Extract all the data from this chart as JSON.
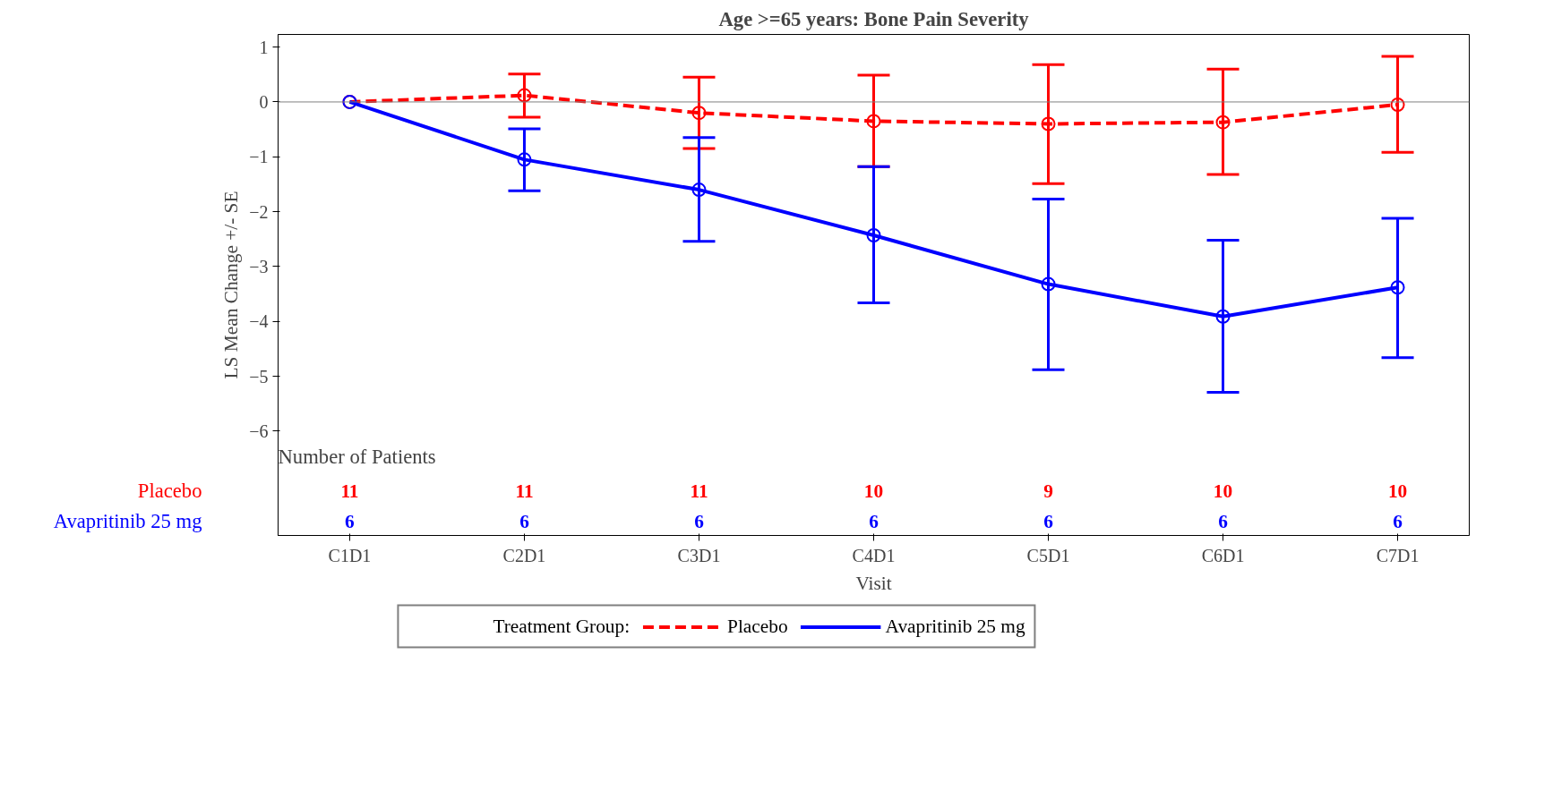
{
  "chart_data": {
    "type": "line",
    "title": "Age >=65 years: Bone Pain Severity",
    "xlabel": "Visit",
    "ylabel": "LS Mean Change +/- SE",
    "legend_title": "Treatment Group:",
    "categories": [
      "C1D1",
      "C2D1",
      "C3D1",
      "C4D1",
      "C5D1",
      "C6D1",
      "C7D1"
    ],
    "ylim": [
      -7.9,
      1.23
    ],
    "yticks": [
      1,
      0,
      -1,
      -2,
      -3,
      -4,
      -5,
      -6
    ],
    "grid": false,
    "legend": "bottom",
    "marker": "circle",
    "series": [
      {
        "name": "Placebo",
        "color": "#ff0000",
        "line_style": "dashed",
        "values": [
          0,
          0.12,
          -0.2,
          -0.35,
          -0.4,
          -0.37,
          -0.05
        ],
        "errors": [
          null,
          [
            -0.28,
            0.51
          ],
          [
            -0.85,
            0.45
          ],
          [
            -1.18,
            0.49
          ],
          [
            -1.49,
            0.68
          ],
          [
            -1.32,
            0.6
          ],
          [
            -0.92,
            0.83
          ]
        ]
      },
      {
        "name": "Avapritinib 25 mg",
        "color": "#0000ff",
        "line_style": "solid",
        "values": [
          0,
          -1.05,
          -1.6,
          -2.43,
          -3.32,
          -3.91,
          -3.38
        ],
        "errors": [
          null,
          [
            -1.62,
            -0.49
          ],
          [
            -2.54,
            -0.65
          ],
          [
            -3.66,
            -1.18
          ],
          [
            -4.88,
            -1.77
          ],
          [
            -5.29,
            -2.52
          ],
          [
            -4.66,
            -2.12
          ]
        ]
      }
    ],
    "ref_lines": [
      {
        "axis": "y",
        "value": 0,
        "color": "#808080"
      }
    ],
    "annotations": [
      "Number of Patients",
      "11",
      "11",
      "11",
      "10",
      "9",
      "10",
      "10",
      "6",
      "6",
      "6",
      "6",
      "6",
      "6",
      "6"
    ]
  }
}
